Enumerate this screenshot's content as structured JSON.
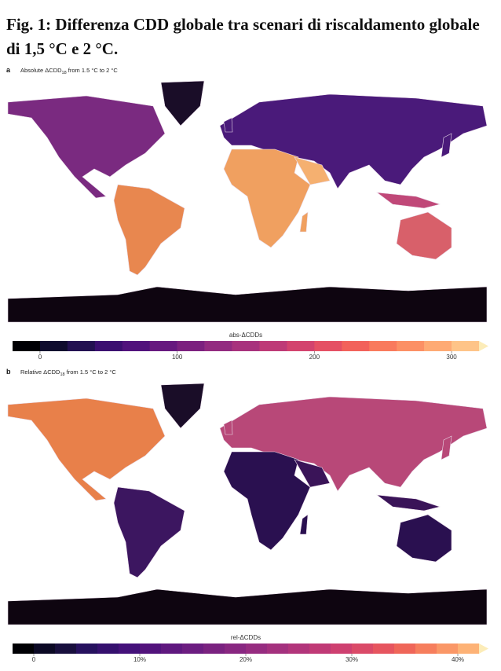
{
  "title": "Fig. 1: Differenza CDD globale tra scenari di riscaldamento globale di 1,5 °C e 2 °C.",
  "panels": [
    {
      "label": "a",
      "caption": {
        "before": "Absolute ΔCDD",
        "sub": "18",
        "after": " from 1.5 °C to 2 °C"
      },
      "colorbar": {
        "title": "abs-ΔCDDs",
        "lim": [
          -20,
          320
        ],
        "ticks": [
          0,
          100,
          200,
          300
        ],
        "colors": [
          "#000004",
          "#0f0c2e",
          "#231151",
          "#3b0f70",
          "#51127c",
          "#67197f",
          "#7c217f",
          "#932b80",
          "#a8327d",
          "#be3a77",
          "#d3436e",
          "#e55064",
          "#f2625b",
          "#f97a5d",
          "#fc9065",
          "#feaa74",
          "#fec488"
        ],
        "over_color": "#fcecb8"
      }
    },
    {
      "label": "b",
      "caption": {
        "before": "Relative ΔCDD",
        "sub": "18",
        "after": " from 1.5 °C to 2 °C"
      },
      "colorbar": {
        "title": "rel-ΔCDDs",
        "lim": [
          -2,
          42
        ],
        "ticks": [
          0,
          {
            "value": 10,
            "label": "10%"
          },
          {
            "value": 20,
            "label": "20%"
          },
          {
            "value": 30,
            "label": "30%"
          },
          {
            "value": 40,
            "label": "40%"
          }
        ],
        "colors": [
          "#000004",
          "#0b0924",
          "#180f3d",
          "#26115e",
          "#35106e",
          "#44117a",
          "#52137c",
          "#5f187f",
          "#6c1d81",
          "#7a2280",
          "#882781",
          "#962c80",
          "#a4317e",
          "#b2357b",
          "#c03a76",
          "#ce4070",
          "#da4a68",
          "#e6555f",
          "#ef6659",
          "#f67e5d",
          "#fa9767",
          "#fdb276"
        ],
        "over_color": "#fcecb8"
      }
    }
  ]
}
